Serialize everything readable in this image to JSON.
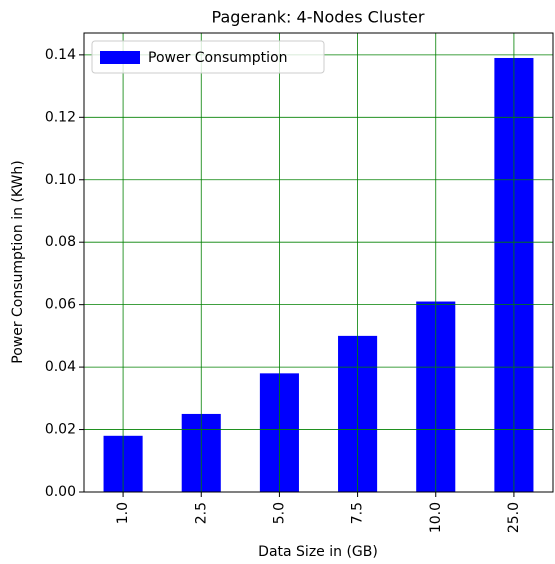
{
  "chart_data": {
    "type": "bar",
    "title": "Pagerank: 4-Nodes Cluster",
    "x_label": "Data Size in (GB)",
    "y_label": "Power Consumption in (KWh)",
    "categories": [
      "1.0",
      "2.5",
      "5.0",
      "7.5",
      "10.0",
      "25.0"
    ],
    "series": [
      {
        "name": "Power Consumption",
        "color": "#0000ff",
        "values": [
          0.018,
          0.025,
          0.038,
          0.05,
          0.061,
          0.139
        ]
      }
    ],
    "ylim": [
      0,
      0.147
    ],
    "yticks": [
      {
        "value": 0,
        "label": "0.00"
      },
      {
        "value": 0.02,
        "label": "0.02"
      },
      {
        "value": 0.04,
        "label": "0.04"
      },
      {
        "value": 0.06,
        "label": "0.06"
      },
      {
        "value": 0.08,
        "label": "0.08"
      },
      {
        "value": 0.1,
        "label": "0.10"
      },
      {
        "value": 0.12,
        "label": "0.12"
      },
      {
        "value": 0.14,
        "label": "0.14"
      }
    ],
    "grid": true,
    "grid_color": "#008000",
    "legend": "upper left"
  }
}
